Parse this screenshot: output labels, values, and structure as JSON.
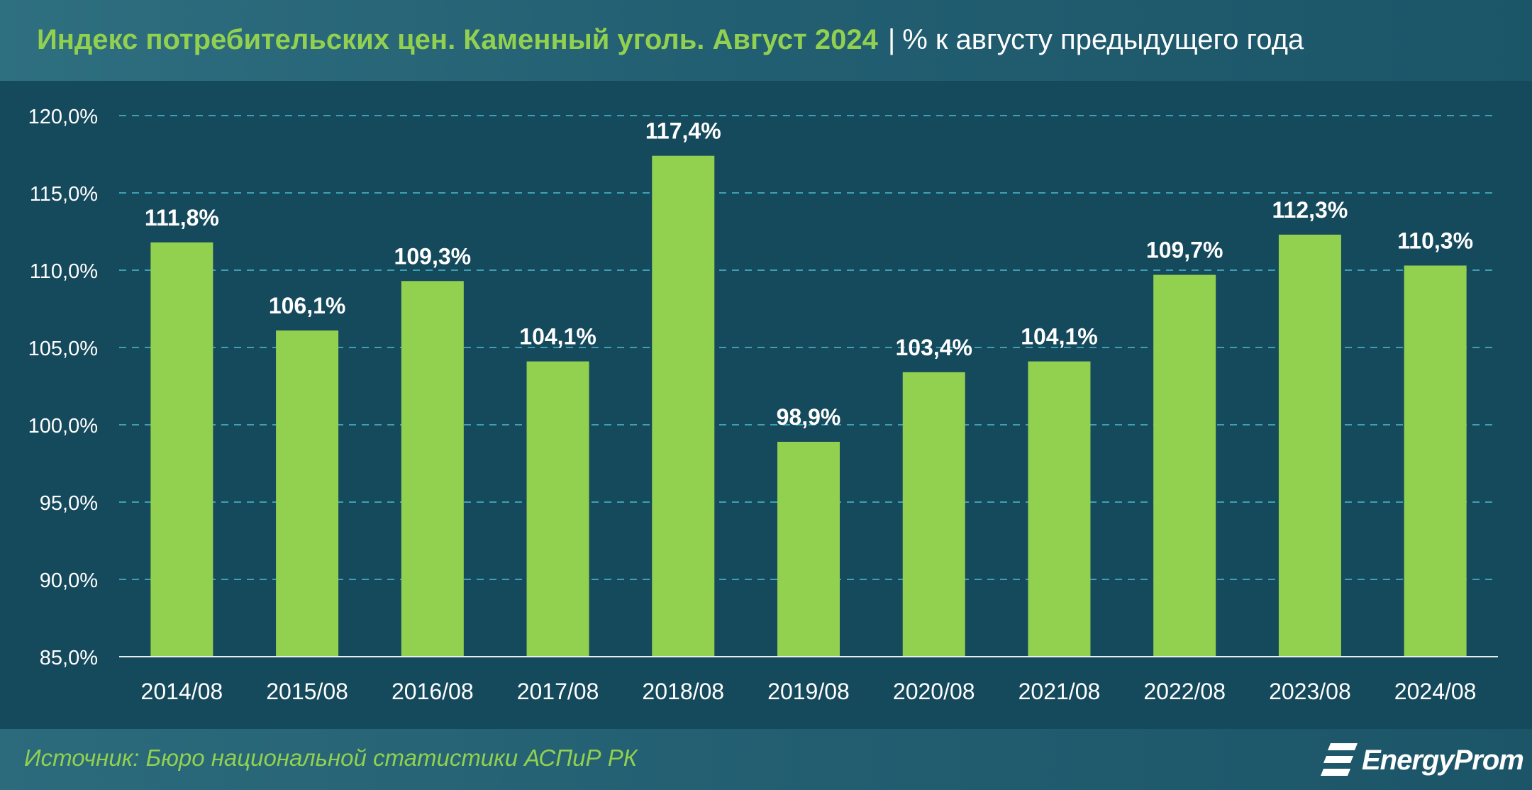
{
  "header": {
    "title": "Индекс потребительских цен. Каменный уголь. Август 2024",
    "separator": "|",
    "subtitle": "% к августу предыдущего года"
  },
  "footer": {
    "source": "Источник: Бюро национальной статистики АСПиР РК",
    "logo_text": "EnergyProm"
  },
  "colors": {
    "background": "#15495c",
    "bar": "#92d050",
    "title_accent": "#92d050",
    "gridline": "#3fa0b5",
    "text": "#ffffff"
  },
  "chart_data": {
    "type": "bar",
    "categories": [
      "2014/08",
      "2015/08",
      "2016/08",
      "2017/08",
      "2018/08",
      "2019/08",
      "2020/08",
      "2021/08",
      "2022/08",
      "2023/08",
      "2024/08"
    ],
    "values": [
      111.8,
      106.1,
      109.3,
      104.1,
      117.4,
      98.9,
      103.4,
      104.1,
      109.7,
      112.3,
      110.3
    ],
    "value_labels": [
      "111,8%",
      "106,1%",
      "109,3%",
      "104,1%",
      "117,4%",
      "98,9%",
      "103,4%",
      "104,1%",
      "109,7%",
      "112,3%",
      "110,3%"
    ],
    "ylim": [
      85,
      120
    ],
    "yticks": [
      85,
      90,
      95,
      100,
      105,
      110,
      115,
      120
    ],
    "ytick_labels": [
      "85,0%",
      "90,0%",
      "95,0%",
      "100,0%",
      "105,0%",
      "110,0%",
      "115,0%",
      "120,0%"
    ],
    "grid": true,
    "grid_style": "dashed",
    "legend": "none"
  }
}
